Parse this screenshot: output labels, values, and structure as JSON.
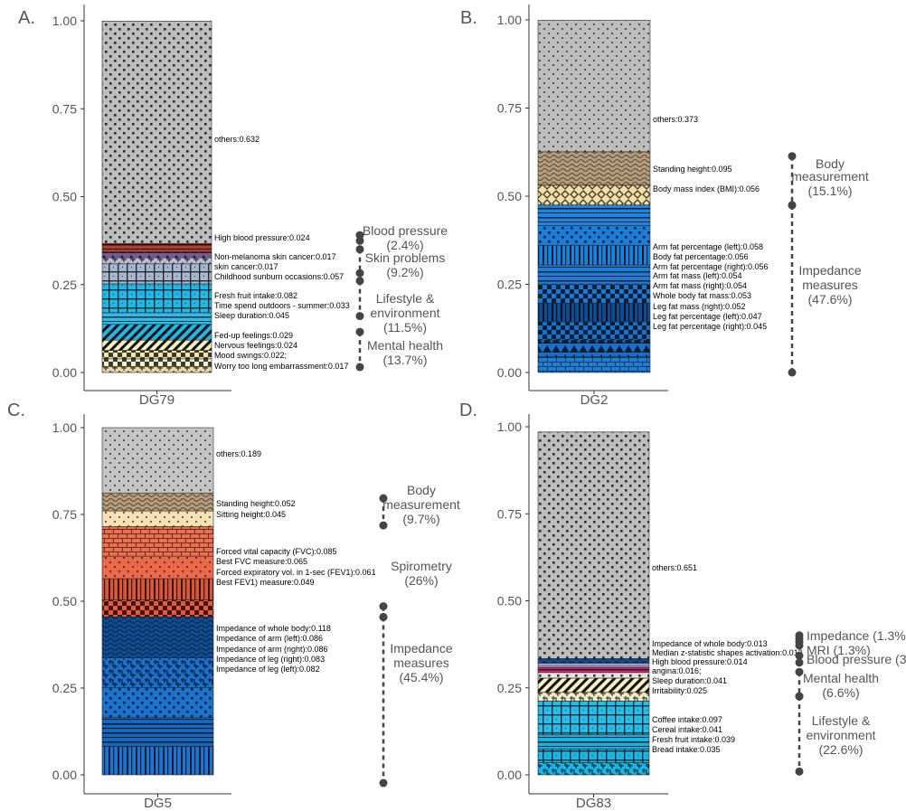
{
  "chart_data": [
    {
      "panel_label": "A.",
      "type": "bar",
      "stacked": true,
      "categories": [
        "DG79"
      ],
      "ylim": [
        0,
        1
      ],
      "yticks": [
        "0.00",
        "0.25",
        "0.50",
        "0.75",
        "1.00"
      ],
      "segments": [
        {
          "label": "Worry too long embarrassment:0.017",
          "value": 0.017,
          "color": "#e6d7a7",
          "pattern": "weave"
        },
        {
          "label": "Mood swings:0.022;",
          "value": 0.022,
          "color": "#f5f0cc",
          "pattern": "checker"
        },
        {
          "label": "Nervous feelings:0.024",
          "value": 0.024,
          "color": "#efe3b0",
          "pattern": "checker"
        },
        {
          "label": "Fed-up feelings:0.029",
          "value": 0.029,
          "color": "#f6efc0",
          "pattern": "stripes"
        },
        {
          "label": "Sleep duration:0.045",
          "value": 0.045,
          "color": "#1db7e8",
          "pattern": "stripes"
        },
        {
          "label": "Time spend outdoors - summer:0.033",
          "value": 0.033,
          "color": "#29bde8",
          "pattern": "hlines"
        },
        {
          "label": "Fresh fruit intake:0.082",
          "value": 0.082,
          "color": "#22b8e6",
          "pattern": "grid"
        },
        {
          "label": "Childhood sunburn occasions:0.057",
          "value": 0.057,
          "color": "#a7b6cf",
          "pattern": "grid"
        },
        {
          "label": "skin cancer:0.017",
          "value": 0.017,
          "color": "#b8bfd3",
          "pattern": "weave"
        },
        {
          "label": "Non-melanoma skin cancer:0.017",
          "value": 0.017,
          "color": "#7a5a93",
          "pattern": "triangles"
        },
        {
          "label": "High blood pressure:0.024",
          "value": 0.024,
          "color": "#a8412e",
          "pattern": "hlines"
        },
        {
          "label": "others:0.632",
          "value": 0.632,
          "color": "#bdbdbd",
          "pattern": "dots"
        }
      ],
      "groups": [
        {
          "label_lines": [
            "Blood pressure",
            "(2.4%)"
          ],
          "range": [
            0.3745,
            0.3905
          ]
        },
        {
          "label_lines": [
            "Skin problems",
            "(9.2%)"
          ],
          "range": [
            0.2825,
            0.3505
          ]
        },
        {
          "label_lines": [
            "Lifestyle &",
            "environment",
            "(11.5%)"
          ],
          "range": [
            0.1605,
            0.2605
          ]
        },
        {
          "label_lines": [
            "Mental health",
            "(13.7%)"
          ],
          "range": [
            0.0155,
            0.1155
          ]
        }
      ]
    },
    {
      "panel_label": "B.",
      "type": "bar",
      "stacked": true,
      "categories": [
        "DG2"
      ],
      "ylim": [
        0,
        1
      ],
      "yticks": [
        "0.00",
        "0.25",
        "0.50",
        "0.75",
        "1.00"
      ],
      "segments": [
        {
          "label": "Leg fat percentage (right):0.045",
          "value": 0.045,
          "color": "#1b7fd6",
          "pattern": "bricks"
        },
        {
          "label": "Leg fat percentage (left):0.047",
          "value": 0.047,
          "color": "#1a6fc8",
          "pattern": "triangles"
        },
        {
          "label": "Leg fat mass (right):0.052",
          "value": 0.052,
          "color": "#1473cf",
          "pattern": "checker"
        },
        {
          "label": "Whole body fat mass:0.053",
          "value": 0.053,
          "color": "#0f4c91",
          "pattern": "vbars"
        },
        {
          "label": "Arm fat mass (right):0.054",
          "value": 0.054,
          "color": "#1a78d2",
          "pattern": "checker"
        },
        {
          "label": "Arm fat mass (left):0.054",
          "value": 0.054,
          "color": "#1d7ed8",
          "pattern": "hlines"
        },
        {
          "label": "Arm fat percentage (right):0.056",
          "value": 0.056,
          "color": "#1b80d9",
          "pattern": "vbars"
        },
        {
          "label": "Body fat percentage:0.056",
          "value": 0.056,
          "color": "#1b7dd7",
          "pattern": "dots"
        },
        {
          "label": "Arm fat percentage (left):0.058",
          "value": 0.058,
          "color": "#1f86df",
          "pattern": "hlines"
        },
        {
          "label": "Body mass index (BMI):0.056",
          "value": 0.056,
          "color": "#f2dfa6",
          "pattern": "diamonds"
        },
        {
          "label": "Standing height:0.095",
          "value": 0.095,
          "color": "#b59d7b",
          "pattern": "wave"
        },
        {
          "label": "others:0.373",
          "value": 0.373,
          "color": "#bdbdbd",
          "pattern": "smalldots"
        }
      ],
      "groups": [
        {
          "label_lines": [
            "Body",
            "measurement",
            "(15.1%)"
          ],
          "range": [
            0.4745,
            0.6135
          ]
        },
        {
          "label_lines": [
            "Impedance",
            "measures",
            "(47.6%)"
          ],
          "range": [
            0.0,
            0.4745
          ]
        }
      ]
    },
    {
      "panel_label": "C.",
      "type": "bar",
      "stacked": true,
      "categories": [
        "DG5"
      ],
      "ylim": [
        0,
        1
      ],
      "yticks": [
        "0.00",
        "0.25",
        "0.50",
        "0.75",
        "1.00"
      ],
      "segments": [
        {
          "label": "Impedance of leg (left):0.082",
          "value": 0.082,
          "color": "#1b74cf",
          "pattern": "vbars"
        },
        {
          "label": "Impedance of leg (right):0.083",
          "value": 0.083,
          "color": "#1767bd",
          "pattern": "hlines"
        },
        {
          "label": "Impedance of arm (right):0.086",
          "value": 0.086,
          "color": "#1b73d0",
          "pattern": "dots"
        },
        {
          "label": "Impedance of arm (left):0.086",
          "value": 0.086,
          "color": "#1a6fcb",
          "pattern": "weave"
        },
        {
          "label": "Impedance of whole body:0.118",
          "value": 0.118,
          "color": "#0f4c91",
          "pattern": "wave"
        },
        {
          "label": "Best FEV1) measure:0.049",
          "value": 0.049,
          "color": "#e8593c",
          "pattern": "checker"
        },
        {
          "label": "Forced expiratory vol. in 1-sec (FEV1):0.061",
          "value": 0.061,
          "color": "#d8563a",
          "pattern": "vbars"
        },
        {
          "label": "Best FVC measure:0.065",
          "value": 0.065,
          "color": "#e9694a",
          "pattern": "smalldots"
        },
        {
          "label": "Forced vital capacity (FVC):0.085",
          "value": 0.085,
          "color": "#ec6f4e",
          "pattern": "bricks"
        },
        {
          "label": "Sitting height:0.045",
          "value": 0.045,
          "color": "#f6e2b4",
          "pattern": "smalldots"
        },
        {
          "label": "Standing height:0.052",
          "value": 0.052,
          "color": "#b59d7b",
          "pattern": "wave"
        },
        {
          "label": "others:0.189",
          "value": 0.189,
          "color": "#c4c4c4",
          "pattern": "smalldots"
        }
      ],
      "groups": [
        {
          "label_lines": [
            "Body",
            "measurement",
            "(9.7%)"
          ],
          "range": [
            0.7185,
            0.7965
          ]
        },
        {
          "label_lines": [
            "Spirometry",
            "(26%)"
          ],
          "range": [
            0.4545,
            0.4855
          ]
        },
        {
          "label_lines": [
            "Impedance",
            "measures",
            "(45.4%)"
          ],
          "range": [
            -0.0235,
            0.4545
          ]
        }
      ]
    },
    {
      "panel_label": "D.",
      "type": "bar",
      "stacked": true,
      "categories": [
        "DG83"
      ],
      "ylim": [
        0,
        1
      ],
      "yticks": [
        "0.00",
        "0.25",
        "0.50",
        "0.75",
        "1.00"
      ],
      "segments": [
        {
          "label": "Bread intake:0.035",
          "value": 0.035,
          "color": "#15b8e8",
          "pattern": "weave"
        },
        {
          "label": "Fresh fruit intake:0.039",
          "value": 0.039,
          "color": "#1ab6e4",
          "pattern": "grid"
        },
        {
          "label": "Cereal intake:0.041",
          "value": 0.041,
          "color": "#1ab1dc",
          "pattern": "hlines"
        },
        {
          "label": "Coffee intake:0.097",
          "value": 0.097,
          "color": "#26bde9",
          "pattern": "grid"
        },
        {
          "label": "Irritability:0.025",
          "value": 0.025,
          "color": "#f3ecc6",
          "pattern": "weave"
        },
        {
          "label": "Sleep duration:0.041",
          "value": 0.041,
          "color": "#f6efc0",
          "pattern": "stripes"
        },
        {
          "label": "angina:0.016;",
          "value": 0.016,
          "color": "#e3e3e3",
          "pattern": "dots"
        },
        {
          "label": "High blood pressure:0.014",
          "value": 0.014,
          "color": "#d92b6a",
          "pattern": "hlines"
        },
        {
          "label": "Median z-statistic shapes activation:0.013",
          "value": 0.013,
          "color": "#8a86b0",
          "pattern": "none"
        },
        {
          "label": "Impedance of whole body:0.013",
          "value": 0.013,
          "color": "#0f4c91",
          "pattern": "wave"
        },
        {
          "label": "others:0.651",
          "value": 0.651,
          "color": "#bdbdbd",
          "pattern": "dots"
        }
      ],
      "groups": [
        {
          "label_lines": [
            "Impedance (1.3%)"
          ],
          "range": [
            0.3905,
            0.4005
          ]
        },
        {
          "label_lines": [
            "MRI (1.3%)"
          ],
          "range": [
            0.3715,
            0.3815
          ]
        },
        {
          "label_lines": [
            "Blood pressure (3%)"
          ],
          "range": [
            0.3225,
            0.3425
          ]
        },
        {
          "label_lines": [
            "Mental health",
            "(6.6%)"
          ],
          "range": [
            0.2255,
            0.2955
          ]
        },
        {
          "label_lines": [
            "Lifestyle &",
            "environment",
            "(22.6%)"
          ],
          "range": [
            0.0095,
            0.2255
          ]
        }
      ]
    }
  ]
}
